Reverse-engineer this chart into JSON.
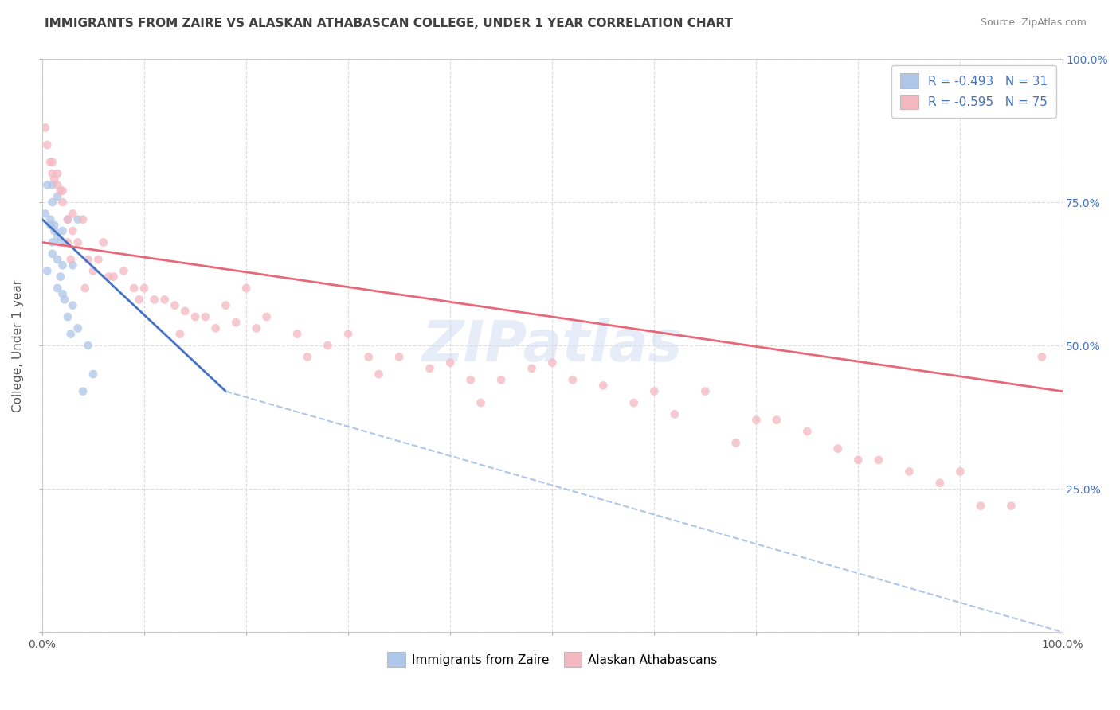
{
  "title": "IMMIGRANTS FROM ZAIRE VS ALASKAN ATHABASCAN COLLEGE, UNDER 1 YEAR CORRELATION CHART",
  "source_text": "Source: ZipAtlas.com",
  "ylabel": "College, Under 1 year",
  "legend_line1": "R = -0.493   N = 31",
  "legend_line2": "R = -0.595   N = 75",
  "xmin": 0.0,
  "xmax": 100.0,
  "ymin": 0.0,
  "ymax": 100.0,
  "right_yticks": [
    0,
    25.0,
    50.0,
    75.0,
    100.0
  ],
  "right_yticklabels": [
    "",
    "25.0%",
    "50.0%",
    "75.0%",
    "100.0%"
  ],
  "watermark": "ZIPatlas",
  "background_color": "#ffffff",
  "grid_color": "#dddddd",
  "blue_scatter_color": "#aec6e8",
  "pink_scatter_color": "#f4b8c1",
  "blue_line_color": "#4472c4",
  "pink_line_color": "#e8687a",
  "dashed_line_color": "#aec6e8",
  "title_color": "#404040",
  "source_color": "#888888",
  "legend_text_color": "#4472c4",
  "blue_points_x": [
    0.3,
    0.5,
    0.5,
    0.8,
    0.8,
    1.0,
    1.0,
    1.0,
    1.0,
    1.2,
    1.2,
    1.5,
    1.5,
    1.5,
    1.5,
    1.8,
    1.8,
    2.0,
    2.0,
    2.0,
    2.2,
    2.5,
    2.5,
    2.8,
    3.0,
    3.0,
    3.5,
    3.5,
    4.0,
    4.5,
    5.0
  ],
  "blue_points_y": [
    73.0,
    63.0,
    78.0,
    71.0,
    72.0,
    75.0,
    68.0,
    66.0,
    78.0,
    71.0,
    70.0,
    65.0,
    60.0,
    69.0,
    76.0,
    68.0,
    62.0,
    70.0,
    64.0,
    59.0,
    58.0,
    55.0,
    72.0,
    52.0,
    64.0,
    57.0,
    72.0,
    53.0,
    42.0,
    50.0,
    45.0
  ],
  "pink_points_x": [
    0.3,
    0.5,
    0.8,
    1.0,
    1.0,
    1.2,
    1.5,
    1.5,
    1.8,
    2.0,
    2.0,
    2.5,
    2.5,
    3.0,
    3.0,
    3.5,
    4.0,
    4.5,
    5.0,
    5.5,
    6.0,
    7.0,
    8.0,
    9.0,
    10.0,
    11.0,
    12.0,
    13.0,
    14.0,
    15.0,
    16.0,
    17.0,
    18.0,
    19.0,
    20.0,
    22.0,
    25.0,
    28.0,
    30.0,
    32.0,
    35.0,
    38.0,
    40.0,
    42.0,
    45.0,
    48.0,
    50.0,
    52.0,
    55.0,
    58.0,
    60.0,
    62.0,
    65.0,
    68.0,
    70.0,
    72.0,
    75.0,
    78.0,
    80.0,
    82.0,
    85.0,
    88.0,
    90.0,
    92.0,
    95.0,
    98.0,
    2.8,
    4.2,
    6.5,
    9.5,
    13.5,
    21.0,
    26.0,
    33.0,
    43.0
  ],
  "pink_points_y": [
    88.0,
    85.0,
    82.0,
    80.0,
    82.0,
    79.0,
    80.0,
    78.0,
    77.0,
    77.0,
    75.0,
    72.0,
    68.0,
    73.0,
    70.0,
    68.0,
    72.0,
    65.0,
    63.0,
    65.0,
    68.0,
    62.0,
    63.0,
    60.0,
    60.0,
    58.0,
    58.0,
    57.0,
    56.0,
    55.0,
    55.0,
    53.0,
    57.0,
    54.0,
    60.0,
    55.0,
    52.0,
    50.0,
    52.0,
    48.0,
    48.0,
    46.0,
    47.0,
    44.0,
    44.0,
    46.0,
    47.0,
    44.0,
    43.0,
    40.0,
    42.0,
    38.0,
    42.0,
    33.0,
    37.0,
    37.0,
    35.0,
    32.0,
    30.0,
    30.0,
    28.0,
    26.0,
    28.0,
    22.0,
    22.0,
    48.0,
    65.0,
    60.0,
    62.0,
    58.0,
    52.0,
    53.0,
    48.0,
    45.0,
    40.0
  ],
  "blue_trend_x": [
    0.0,
    18.0
  ],
  "blue_trend_y": [
    72.0,
    42.0
  ],
  "pink_trend_x": [
    0.0,
    100.0
  ],
  "pink_trend_y": [
    68.0,
    42.0
  ],
  "dashed_trend_x": [
    18.0,
    100.0
  ],
  "dashed_trend_y": [
    42.0,
    0.0
  ]
}
